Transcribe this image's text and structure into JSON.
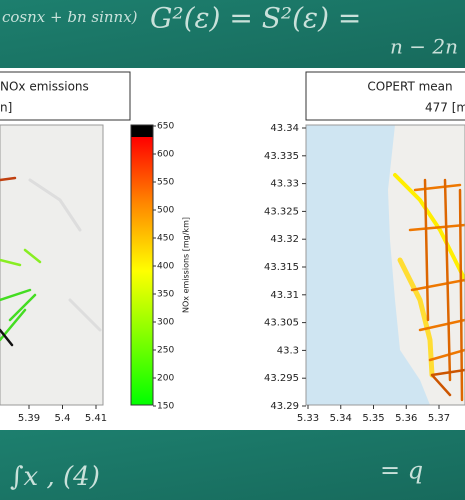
{
  "chalkboard": {
    "top": [
      "cosnx + bn sinnx)",
      "G²(ε) = S²(ε) =",
      "n − 2n"
    ],
    "bottom": [
      "∫x , (4)",
      "= q"
    ]
  },
  "left_panel": {
    "title_lines": [
      "NOx emissions",
      "n]"
    ],
    "x_ticks": [
      5.39,
      5.4,
      5.41
    ],
    "colorbar": {
      "label": "NOx emissions [mg/km]",
      "ticks": [
        650,
        600,
        550,
        500,
        450,
        400,
        350,
        300,
        250,
        200,
        150
      ]
    }
  },
  "right_panel": {
    "title_lines": [
      "COPERT mean",
      "477 [m"
    ],
    "y_ticks": [
      43.34,
      43.335,
      43.33,
      43.325,
      43.32,
      43.315,
      43.31,
      43.305,
      43.3,
      43.295,
      43.29
    ],
    "x_ticks": [
      5.33,
      5.34,
      5.35,
      5.36,
      5.37
    ]
  }
}
